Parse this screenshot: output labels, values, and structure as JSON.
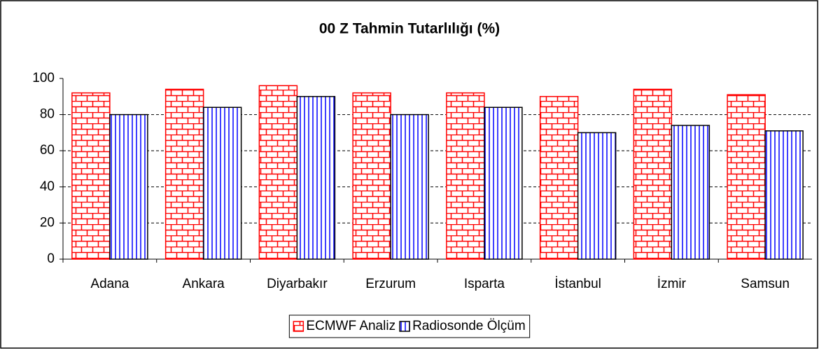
{
  "chart_data": {
    "type": "bar",
    "title": "00 Z Tahmin Tutarlılığı (%)",
    "categories": [
      "Adana",
      "Ankara",
      "Diyarbakır",
      "Erzurum",
      "Isparta",
      "İstanbul",
      "İzmir",
      "Samsun"
    ],
    "series": [
      {
        "name": "ECMWF Analiz",
        "color": "#ff0000",
        "values": [
          92,
          94,
          96,
          92,
          92,
          90,
          94,
          91
        ]
      },
      {
        "name": "Radiosonde Ölçüm",
        "color": "#0000ff",
        "values": [
          80,
          84,
          90,
          80,
          84,
          70,
          74,
          71
        ]
      }
    ],
    "ylim": [
      0,
      100
    ],
    "yticks": [
      0,
      20,
      40,
      60,
      80,
      100
    ],
    "grid": true,
    "legend": "bottom"
  }
}
